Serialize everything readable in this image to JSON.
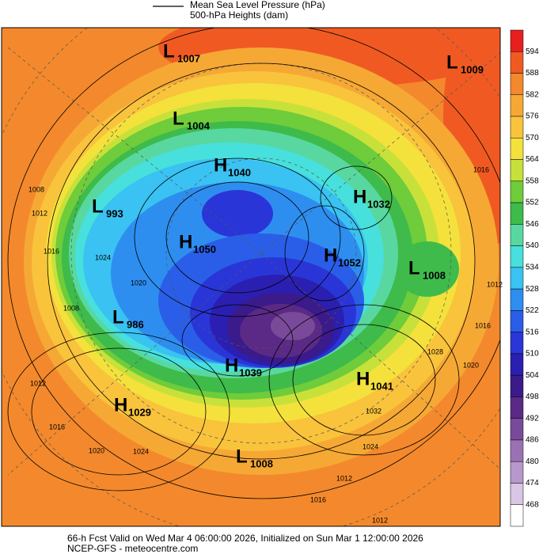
{
  "header": {
    "line_label": "Mean Sea Level Pressure (hPa)",
    "fill_label": "500-hPa Heights (dam)"
  },
  "colorbar": {
    "levels": [
      594,
      588,
      582,
      576,
      570,
      564,
      558,
      552,
      546,
      540,
      534,
      528,
      522,
      516,
      510,
      504,
      498,
      492,
      486,
      480,
      474,
      468
    ],
    "colors": [
      "#e81f1f",
      "#f05a22",
      "#f3892c",
      "#f6a835",
      "#f9c33c",
      "#f4e13c",
      "#c8e13a",
      "#6fcc3a",
      "#3ebb4a",
      "#58d8a0",
      "#47e0dc",
      "#39c2f2",
      "#2e8ef0",
      "#2a5ee8",
      "#2a35d8",
      "#2a1fb0",
      "#3b1a8a",
      "#5a2a86",
      "#7a4a9a",
      "#9a72b4",
      "#b898cc",
      "#d8c6e4",
      "#ffffff"
    ]
  },
  "pressure_centers": [
    {
      "type": "L",
      "value": 1007
    },
    {
      "type": "L",
      "value": 1009
    },
    {
      "type": "L",
      "value": 1004
    },
    {
      "type": "H",
      "value": 1040
    },
    {
      "type": "L",
      "value": 993
    },
    {
      "type": "H",
      "value": 1032
    },
    {
      "type": "H",
      "value": 1050
    },
    {
      "type": "H",
      "value": 1052
    },
    {
      "type": "L",
      "value": 1008
    },
    {
      "type": "L",
      "value": 986
    },
    {
      "type": "H",
      "value": 1039
    },
    {
      "type": "H",
      "value": 1041
    },
    {
      "type": "H",
      "value": 1029
    },
    {
      "type": "L",
      "value": 1008
    }
  ],
  "isobar_labels": [
    1008,
    1012,
    1016,
    1024,
    1020,
    1008,
    1012,
    1016,
    1020,
    1024,
    1016,
    1012,
    1028,
    1032,
    1020,
    1024,
    1016,
    1012,
    1016,
    1012
  ],
  "footer": {
    "valid": "66-h Fcst Valid on Wed Mar  4 06:00:00 2026, Initialized on Sun Mar  1 12:00:00 2026",
    "source": "NCEP-GFS  - meteocentre.com"
  }
}
